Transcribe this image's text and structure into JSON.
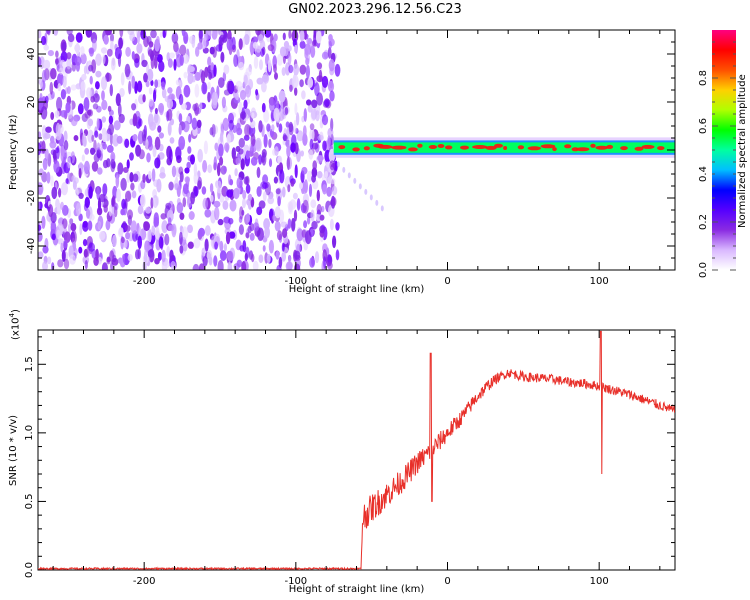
{
  "title": "GN02.2023.296.12.56.C23",
  "chart_data": [
    {
      "type": "heatmap",
      "xlabel": "Height of straight line (km)",
      "ylabel": "Frequency (Hz)",
      "xlim": [
        -270,
        150
      ],
      "ylim": [
        -50,
        50
      ],
      "x_ticks": [
        "-200",
        "-100",
        "0",
        "100"
      ],
      "y_ticks": [
        "-40",
        "-20",
        "0",
        "20",
        "40"
      ],
      "colorbar": {
        "label": "Normalized spectral amplitude",
        "range": [
          0,
          1
        ],
        "ticks": [
          "0.0",
          "0.2",
          "0.4",
          "0.6",
          "0.8"
        ],
        "colors": [
          "#ffffff",
          "#d9b8ff",
          "#8a2be2",
          "#5500ff",
          "#0000ff",
          "#00bfff",
          "#00ffa0",
          "#00ff00",
          "#b0ff00",
          "#ffd000",
          "#ff5000",
          "#ff0000",
          "#ff0080"
        ]
      },
      "noise_region_x": [
        -270,
        -75
      ],
      "signal_band": {
        "x_start": -75,
        "x_end": 150,
        "freq_center": 1,
        "freq_halfwidth": 3
      },
      "signal_colors": [
        "#00ff60",
        "#ff1010"
      ]
    },
    {
      "type": "line",
      "xlabel": "Height of straight line (km)",
      "ylabel": "SNR (10 * v/v)",
      "scale_label": "(x10",
      "scale_exp": "4",
      "xlim": [
        -270,
        150
      ],
      "ylim": [
        0,
        1.75
      ],
      "x_ticks": [
        "-200",
        "-100",
        "0",
        "100"
      ],
      "y_ticks": [
        "0.0",
        "0.5",
        "1.0",
        "1.5"
      ],
      "line_color": "#e8302a",
      "envelope": {
        "x": [
          -270,
          -57,
          -56,
          -50,
          -40,
          -30,
          -20,
          -10,
          0,
          10,
          20,
          30,
          40,
          50,
          60,
          70,
          80,
          90,
          100,
          110,
          120,
          130,
          140,
          150
        ],
        "y": [
          0.01,
          0.01,
          0.38,
          0.45,
          0.55,
          0.65,
          0.78,
          0.88,
          1.0,
          1.12,
          1.27,
          1.38,
          1.44,
          1.41,
          1.4,
          1.39,
          1.37,
          1.36,
          1.34,
          1.31,
          1.28,
          1.24,
          1.2,
          1.16
        ]
      },
      "spikes": [
        {
          "x": -11,
          "y": 1.58,
          "low": 0.5
        },
        {
          "x": 101,
          "y": 1.74,
          "low": 0.7
        }
      ]
    }
  ]
}
